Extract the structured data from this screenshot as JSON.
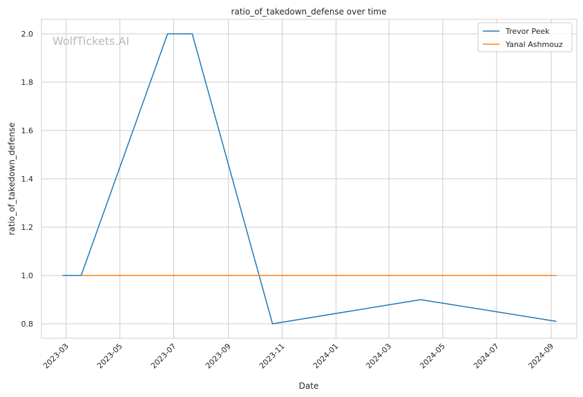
{
  "watermark": "WolfTickets.AI",
  "chart_data": {
    "type": "line",
    "title": "ratio_of_takedown_defense over time",
    "xlabel": "Date",
    "ylabel": "ratio_of_takedown_defense",
    "x_axis_type": "date",
    "xlim": [
      "2023-02-01",
      "2024-09-30"
    ],
    "ylim": [
      0.74,
      2.06
    ],
    "xticks": [
      "2023-03",
      "2023-05",
      "2023-07",
      "2023-09",
      "2023-11",
      "2024-01",
      "2024-03",
      "2024-05",
      "2024-07",
      "2024-09"
    ],
    "yticks": [
      "0.8",
      "1.0",
      "1.2",
      "1.4",
      "1.6",
      "1.8",
      "2.0"
    ],
    "grid": true,
    "legend_position": "top-right",
    "series": [
      {
        "name": "Trevor Peek",
        "color": "#1f77b4",
        "points": [
          {
            "x": "2023-02-25",
            "y": 1.0
          },
          {
            "x": "2023-03-18",
            "y": 1.0
          },
          {
            "x": "2023-06-24",
            "y": 2.0
          },
          {
            "x": "2023-07-22",
            "y": 2.0
          },
          {
            "x": "2023-10-21",
            "y": 0.8
          },
          {
            "x": "2024-04-06",
            "y": 0.9
          },
          {
            "x": "2024-09-07",
            "y": 0.81
          }
        ]
      },
      {
        "name": "Yanal Ashmouz",
        "color": "#ff7f0e",
        "points": [
          {
            "x": "2023-03-18",
            "y": 1.0
          },
          {
            "x": "2024-09-07",
            "y": 1.0
          }
        ]
      }
    ]
  }
}
